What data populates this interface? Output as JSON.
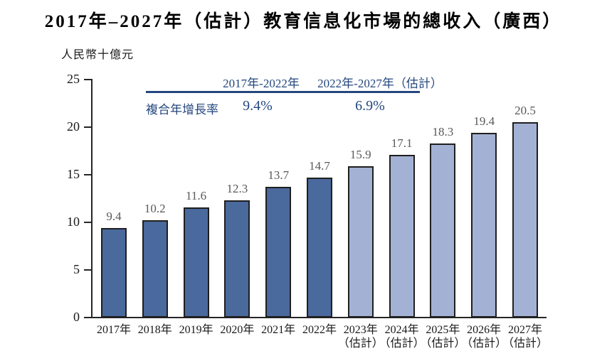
{
  "title": "2017年–2027年（估計）教育信息化市場的總收入（廣西）",
  "unit_label": "人民幣十億元",
  "cagr_table": {
    "row_label": "複合年增長率",
    "columns": [
      {
        "header": "2017年-2022年",
        "value": "9.4%"
      },
      {
        "header": "2022年-2027年（估計）",
        "value": "6.9%"
      }
    ]
  },
  "colors": {
    "historical_bar": "#4a699c",
    "estimated_bar": "#a3b2d4",
    "bar_border": "#1f1f1f",
    "axis": "#262626",
    "value_label": "#595959",
    "annotation": "#24477e",
    "background": "#ffffff"
  },
  "chart_data": {
    "type": "bar",
    "title": "2017年–2027年（估計）教育信息化市場的總收入（廣西）",
    "ylabel": "人民幣十億元",
    "xlabel": "",
    "categories": [
      "2017年",
      "2018年",
      "2019年",
      "2020年",
      "2021年",
      "2022年",
      "2023年",
      "2024年",
      "2025年",
      "2026年",
      "2027年"
    ],
    "category_sublabels": [
      "",
      "",
      "",
      "",
      "",
      "",
      "（估計）",
      "（估計）",
      "（估計）",
      "（估計）",
      "（估計）"
    ],
    "values": [
      9.4,
      10.2,
      11.6,
      12.3,
      13.7,
      14.7,
      15.9,
      17.1,
      18.3,
      19.4,
      20.5
    ],
    "series": [
      {
        "name": "2017年-2022年",
        "cagr": "9.4%",
        "range": [
          0,
          5
        ],
        "color_key": "historical_bar"
      },
      {
        "name": "2022年-2027年（估計）",
        "cagr": "6.9%",
        "range": [
          6,
          10
        ],
        "color_key": "estimated_bar"
      }
    ],
    "yticks": [
      0,
      5,
      10,
      15,
      20,
      25
    ],
    "ylim": [
      0,
      25
    ],
    "grid": false,
    "legend": "none",
    "value_labels_shown": true
  }
}
